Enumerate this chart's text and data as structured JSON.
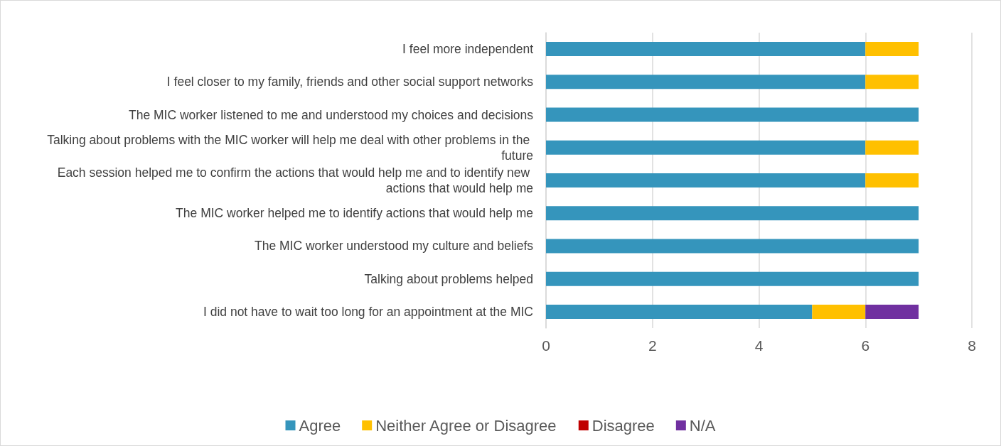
{
  "chart_data": {
    "type": "bar",
    "orientation": "horizontal",
    "stacked": true,
    "categories": [
      "I feel more independent",
      "I feel closer to my family, friends and other social support networks",
      "The MIC worker listened to me and understood my choices and decisions",
      "Talking about problems with the MIC worker will help me deal with other problems in the future",
      "Each session helped me to confirm the actions that would help me and to identify new actions that would help me",
      "The MIC worker helped me to identify actions that would help me",
      "The MIC worker understood my culture and beliefs",
      "Talking about problems helped",
      "I did not have to wait too long for an appointment at the MIC"
    ],
    "series": [
      {
        "name": "Agree",
        "color": "#3595bc",
        "values": [
          6,
          6,
          7,
          6,
          6,
          7,
          7,
          7,
          5
        ]
      },
      {
        "name": "Neither Agree or Disagree",
        "color": "#ffc000",
        "values": [
          1,
          1,
          0,
          1,
          1,
          0,
          0,
          0,
          1
        ]
      },
      {
        "name": "Disagree",
        "color": "#c00000",
        "values": [
          0,
          0,
          0,
          0,
          0,
          0,
          0,
          0,
          0
        ]
      },
      {
        "name": "N/A",
        "color": "#7030a0",
        "values": [
          0,
          0,
          0,
          0,
          0,
          0,
          0,
          0,
          1
        ]
      }
    ],
    "xlim": [
      0,
      8
    ],
    "xticks": [
      0,
      2,
      4,
      6,
      8
    ],
    "grid": "x",
    "legend": "bottom"
  }
}
